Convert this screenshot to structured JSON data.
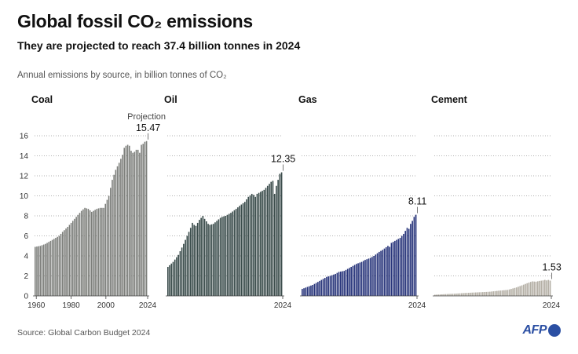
{
  "header": {
    "title": "Global fossil CO₂ emissions",
    "subtitle": "They are projected to reach 37.4 billion tonnes in 2024",
    "description": "Annual emissions by source, in billion tonnes of CO₂"
  },
  "footer": {
    "source": "Source: Global Carbon Budget 2024",
    "logo_text": "AFP"
  },
  "chart_data": [
    {
      "type": "bar",
      "title": "Coal",
      "color": "#7c7e7a",
      "x_range": [
        1959,
        2024
      ],
      "ylim": [
        0,
        16
      ],
      "yticks": [
        0,
        2,
        4,
        6,
        8,
        10,
        12,
        14,
        16
      ],
      "xticks": [
        1960,
        1980,
        2000,
        2024
      ],
      "grid": true,
      "annotation_note": "Projection",
      "end_label": "15.47",
      "keyframes": [
        [
          1959,
          4.9
        ],
        [
          1962,
          5.0
        ],
        [
          1965,
          5.2
        ],
        [
          1968,
          5.5
        ],
        [
          1970,
          5.7
        ],
        [
          1973,
          6.0
        ],
        [
          1975,
          6.4
        ],
        [
          1978,
          6.9
        ],
        [
          1980,
          7.3
        ],
        [
          1983,
          7.9
        ],
        [
          1986,
          8.5
        ],
        [
          1988,
          8.8
        ],
        [
          1990,
          8.7
        ],
        [
          1992,
          8.4
        ],
        [
          1995,
          8.7
        ],
        [
          1997,
          8.8
        ],
        [
          1999,
          8.8
        ],
        [
          2000,
          9.2
        ],
        [
          2002,
          10.0
        ],
        [
          2004,
          11.6
        ],
        [
          2006,
          12.6
        ],
        [
          2008,
          13.3
        ],
        [
          2010,
          14.1
        ],
        [
          2011,
          14.8
        ],
        [
          2012,
          15.0
        ],
        [
          2013,
          15.1
        ],
        [
          2014,
          15.0
        ],
        [
          2015,
          14.5
        ],
        [
          2016,
          14.3
        ],
        [
          2017,
          14.4
        ],
        [
          2018,
          14.6
        ],
        [
          2019,
          14.6
        ],
        [
          2020,
          14.3
        ],
        [
          2021,
          15.1
        ],
        [
          2022,
          15.2
        ],
        [
          2023,
          15.4
        ],
        [
          2024,
          15.47
        ]
      ]
    },
    {
      "type": "bar",
      "title": "Oil",
      "color": "#394b4a",
      "x_range": [
        1959,
        2024
      ],
      "ylim": [
        0,
        16
      ],
      "xticks": [
        2024
      ],
      "grid": true,
      "end_label": "12.35",
      "keyframes": [
        [
          1959,
          2.9
        ],
        [
          1962,
          3.4
        ],
        [
          1965,
          4.1
        ],
        [
          1968,
          5.2
        ],
        [
          1970,
          6.0
        ],
        [
          1972,
          6.8
        ],
        [
          1973,
          7.3
        ],
        [
          1974,
          7.1
        ],
        [
          1975,
          7.0
        ],
        [
          1977,
          7.6
        ],
        [
          1979,
          8.0
        ],
        [
          1980,
          7.7
        ],
        [
          1982,
          7.2
        ],
        [
          1983,
          7.1
        ],
        [
          1985,
          7.2
        ],
        [
          1987,
          7.5
        ],
        [
          1989,
          7.8
        ],
        [
          1990,
          7.9
        ],
        [
          1992,
          8.0
        ],
        [
          1995,
          8.3
        ],
        [
          1998,
          8.7
        ],
        [
          2000,
          9.0
        ],
        [
          2003,
          9.4
        ],
        [
          2005,
          9.9
        ],
        [
          2007,
          10.2
        ],
        [
          2008,
          10.1
        ],
        [
          2009,
          9.9
        ],
        [
          2010,
          10.2
        ],
        [
          2012,
          10.4
        ],
        [
          2014,
          10.6
        ],
        [
          2016,
          11.0
        ],
        [
          2018,
          11.4
        ],
        [
          2019,
          11.5
        ],
        [
          2020,
          10.2
        ],
        [
          2021,
          11.0
        ],
        [
          2022,
          11.6
        ],
        [
          2023,
          12.2
        ],
        [
          2024,
          12.35
        ]
      ]
    },
    {
      "type": "bar",
      "title": "Gas",
      "color": "#27347a",
      "x_range": [
        1959,
        2024
      ],
      "ylim": [
        0,
        16
      ],
      "xticks": [
        2024
      ],
      "grid": true,
      "end_label": "8.11",
      "keyframes": [
        [
          1959,
          0.7
        ],
        [
          1962,
          0.9
        ],
        [
          1965,
          1.1
        ],
        [
          1968,
          1.4
        ],
        [
          1970,
          1.6
        ],
        [
          1973,
          1.9
        ],
        [
          1975,
          2.0
        ],
        [
          1978,
          2.2
        ],
        [
          1980,
          2.4
        ],
        [
          1983,
          2.5
        ],
        [
          1985,
          2.7
        ],
        [
          1988,
          3.0
        ],
        [
          1990,
          3.2
        ],
        [
          1993,
          3.4
        ],
        [
          1995,
          3.6
        ],
        [
          1998,
          3.8
        ],
        [
          2000,
          4.0
        ],
        [
          2003,
          4.4
        ],
        [
          2005,
          4.6
        ],
        [
          2008,
          5.0
        ],
        [
          2009,
          4.9
        ],
        [
          2010,
          5.3
        ],
        [
          2013,
          5.6
        ],
        [
          2015,
          5.8
        ],
        [
          2017,
          6.2
        ],
        [
          2019,
          6.8
        ],
        [
          2020,
          6.7
        ],
        [
          2021,
          7.2
        ],
        [
          2022,
          7.5
        ],
        [
          2023,
          7.9
        ],
        [
          2024,
          8.11
        ]
      ]
    },
    {
      "type": "bar",
      "title": "Cement",
      "color": "#b4afa5",
      "x_range": [
        1959,
        2024
      ],
      "ylim": [
        0,
        16
      ],
      "xticks": [
        2024
      ],
      "grid": true,
      "end_label": "1.53",
      "keyframes": [
        [
          1959,
          0.12
        ],
        [
          1965,
          0.18
        ],
        [
          1970,
          0.22
        ],
        [
          1975,
          0.28
        ],
        [
          1980,
          0.33
        ],
        [
          1985,
          0.37
        ],
        [
          1990,
          0.42
        ],
        [
          1995,
          0.52
        ],
        [
          2000,
          0.6
        ],
        [
          2005,
          0.85
        ],
        [
          2008,
          1.05
        ],
        [
          2010,
          1.2
        ],
        [
          2013,
          1.4
        ],
        [
          2014,
          1.45
        ],
        [
          2016,
          1.42
        ],
        [
          2018,
          1.5
        ],
        [
          2020,
          1.55
        ],
        [
          2021,
          1.6
        ],
        [
          2022,
          1.55
        ],
        [
          2023,
          1.6
        ],
        [
          2024,
          1.53
        ]
      ]
    }
  ]
}
